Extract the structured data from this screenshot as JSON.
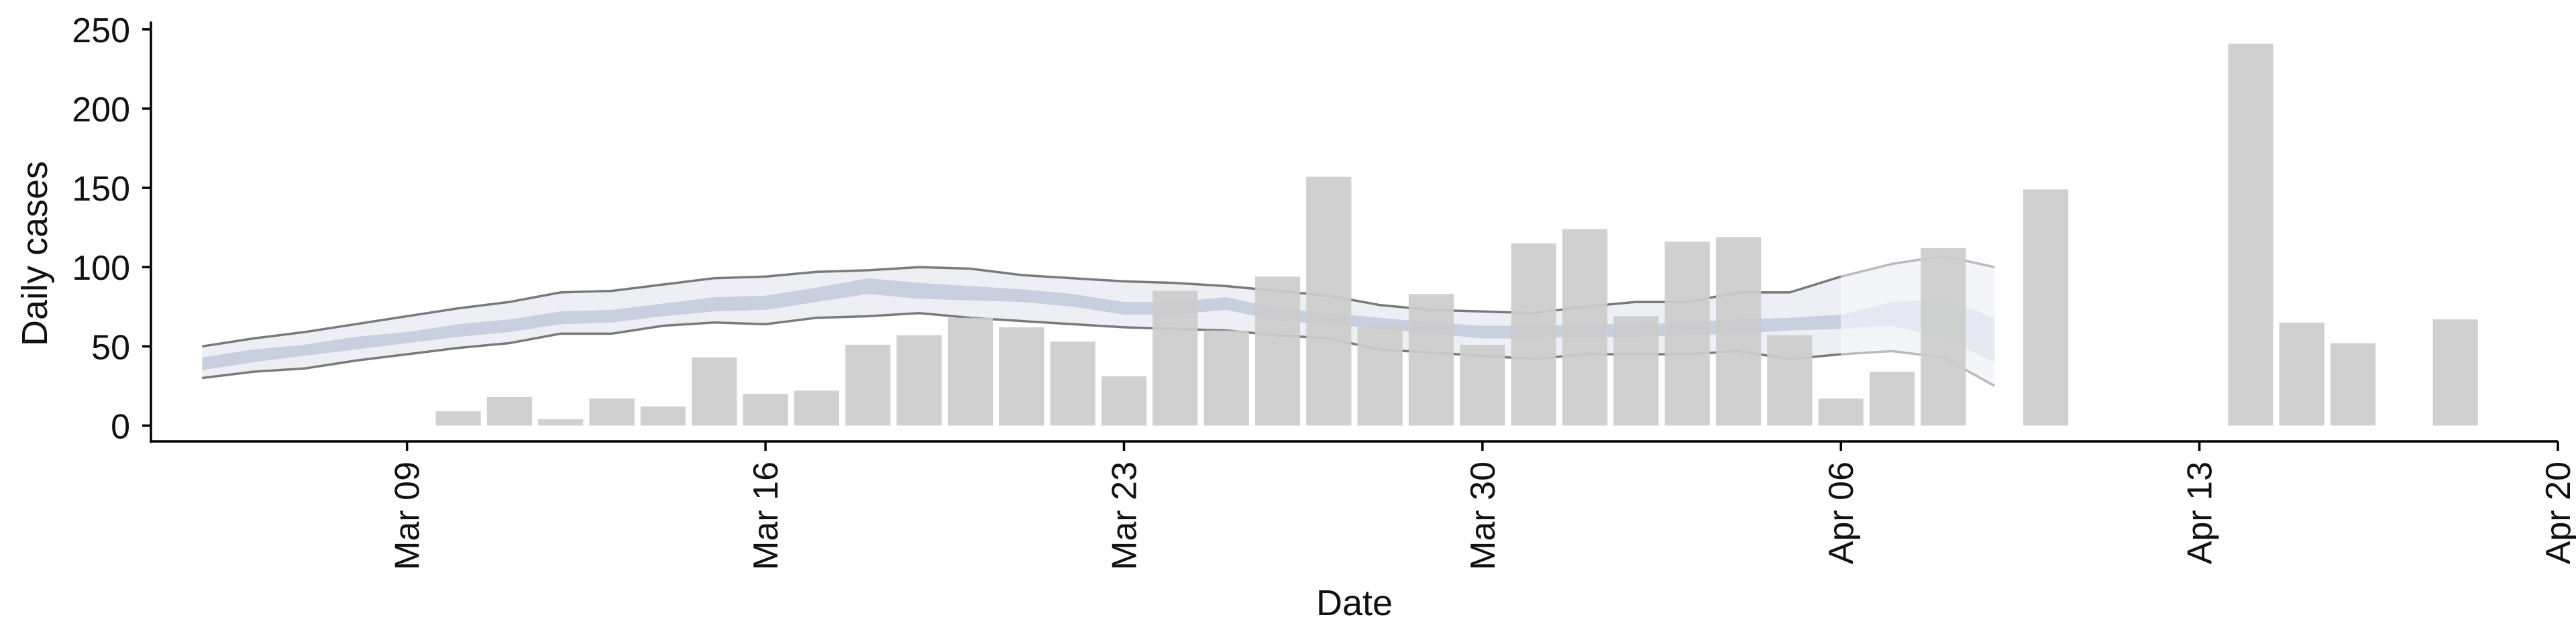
{
  "chart_data": {
    "type": "bar",
    "xlabel": "Date",
    "ylabel": "Daily cases",
    "ylim": [
      -10,
      255
    ],
    "xlim": [
      "2020-03-04",
      "2020-04-20"
    ],
    "yticks": [
      0,
      50,
      100,
      150,
      200,
      250
    ],
    "xticks": [
      {
        "date": "2020-03-09",
        "label": "Mar 09"
      },
      {
        "date": "2020-03-16",
        "label": "Mar 16"
      },
      {
        "date": "2020-03-23",
        "label": "Mar 23"
      },
      {
        "date": "2020-03-30",
        "label": "Mar 30"
      },
      {
        "date": "2020-04-06",
        "label": "Apr 06"
      },
      {
        "date": "2020-04-13",
        "label": "Apr 13"
      },
      {
        "date": "2020-04-20",
        "label": "Apr 20"
      }
    ],
    "bars": {
      "color": "#cccccc",
      "x": [
        "2020-03-10",
        "2020-03-11",
        "2020-03-12",
        "2020-03-13",
        "2020-03-14",
        "2020-03-15",
        "2020-03-16",
        "2020-03-17",
        "2020-03-18",
        "2020-03-19",
        "2020-03-20",
        "2020-03-21",
        "2020-03-22",
        "2020-03-23",
        "2020-03-24",
        "2020-03-25",
        "2020-03-26",
        "2020-03-27",
        "2020-03-28",
        "2020-03-29",
        "2020-03-30",
        "2020-03-31",
        "2020-04-01",
        "2020-04-02",
        "2020-04-03",
        "2020-04-04",
        "2020-04-05",
        "2020-04-06",
        "2020-04-07",
        "2020-04-08",
        "2020-04-10",
        "2020-04-14",
        "2020-04-15",
        "2020-04-16",
        "2020-04-18"
      ],
      "values": [
        9,
        18,
        4,
        17,
        12,
        43,
        20,
        22,
        51,
        57,
        68,
        62,
        53,
        31,
        85,
        60,
        94,
        157,
        63,
        83,
        51,
        115,
        124,
        69,
        116,
        119,
        57,
        17,
        34,
        112,
        149,
        241,
        65,
        52,
        67
      ]
    },
    "bands": [
      {
        "kind": "outer-interval",
        "fill": "#eceef4",
        "stroke": "#7a7a7a",
        "x": [
          "2020-03-05",
          "2020-03-06",
          "2020-03-07",
          "2020-03-08",
          "2020-03-09",
          "2020-03-10",
          "2020-03-11",
          "2020-03-12",
          "2020-03-13",
          "2020-03-14",
          "2020-03-15",
          "2020-03-16",
          "2020-03-17",
          "2020-03-18",
          "2020-03-19",
          "2020-03-20",
          "2020-03-21",
          "2020-03-22",
          "2020-03-23",
          "2020-03-24",
          "2020-03-25",
          "2020-03-26",
          "2020-03-27",
          "2020-03-28",
          "2020-03-29",
          "2020-03-30",
          "2020-03-31",
          "2020-04-01",
          "2020-04-02",
          "2020-04-03",
          "2020-04-04",
          "2020-04-05",
          "2020-04-06"
        ],
        "lower": [
          30,
          34,
          36,
          41,
          45,
          49,
          52,
          58,
          58,
          63,
          65,
          64,
          68,
          69,
          71,
          68,
          66,
          64,
          62,
          61,
          60,
          57,
          55,
          48,
          46,
          44,
          42,
          45,
          45,
          45,
          47,
          42,
          45
        ],
        "upper": [
          50,
          55,
          59,
          64,
          69,
          74,
          78,
          84,
          85,
          89,
          93,
          94,
          97,
          98,
          100,
          99,
          95,
          93,
          91,
          90,
          88,
          85,
          82,
          76,
          73,
          72,
          71,
          75,
          78,
          78,
          84,
          84,
          94
        ]
      },
      {
        "kind": "outer-interval-forecast",
        "fill": "#f3f4f8",
        "stroke": "#bbbbbb",
        "x": [
          "2020-04-06",
          "2020-04-07",
          "2020-04-08",
          "2020-04-09"
        ],
        "lower": [
          45,
          47,
          43,
          25
        ],
        "upper": [
          94,
          102,
          107,
          100
        ]
      },
      {
        "kind": "inner-interval",
        "fill": "#c6ccdd",
        "x": [
          "2020-03-05",
          "2020-03-06",
          "2020-03-07",
          "2020-03-08",
          "2020-03-09",
          "2020-03-10",
          "2020-03-11",
          "2020-03-12",
          "2020-03-13",
          "2020-03-14",
          "2020-03-15",
          "2020-03-16",
          "2020-03-17",
          "2020-03-18",
          "2020-03-19",
          "2020-03-20",
          "2020-03-21",
          "2020-03-22",
          "2020-03-23",
          "2020-03-24",
          "2020-03-25",
          "2020-03-26",
          "2020-03-27",
          "2020-03-28",
          "2020-03-29",
          "2020-03-30",
          "2020-03-31",
          "2020-04-01",
          "2020-04-02",
          "2020-04-03",
          "2020-04-04",
          "2020-04-05",
          "2020-04-06"
        ],
        "lower": [
          35,
          40,
          44,
          48,
          52,
          56,
          59,
          64,
          65,
          69,
          72,
          73,
          78,
          83,
          80,
          79,
          78,
          75,
          70,
          70,
          73,
          66,
          64,
          61,
          58,
          55,
          55,
          56,
          56,
          57,
          58,
          60,
          61
        ],
        "upper": [
          43,
          48,
          51,
          56,
          59,
          64,
          67,
          72,
          73,
          77,
          81,
          82,
          87,
          93,
          90,
          88,
          86,
          83,
          78,
          78,
          81,
          74,
          71,
          68,
          65,
          63,
          63,
          64,
          64,
          65,
          67,
          68,
          70
        ]
      },
      {
        "kind": "inner-interval-forecast",
        "fill": "#e5e8f0",
        "x": [
          "2020-04-06",
          "2020-04-07",
          "2020-04-08",
          "2020-04-09"
        ],
        "lower": [
          61,
          63,
          55,
          40
        ],
        "upper": [
          70,
          78,
          80,
          68
        ]
      }
    ]
  }
}
